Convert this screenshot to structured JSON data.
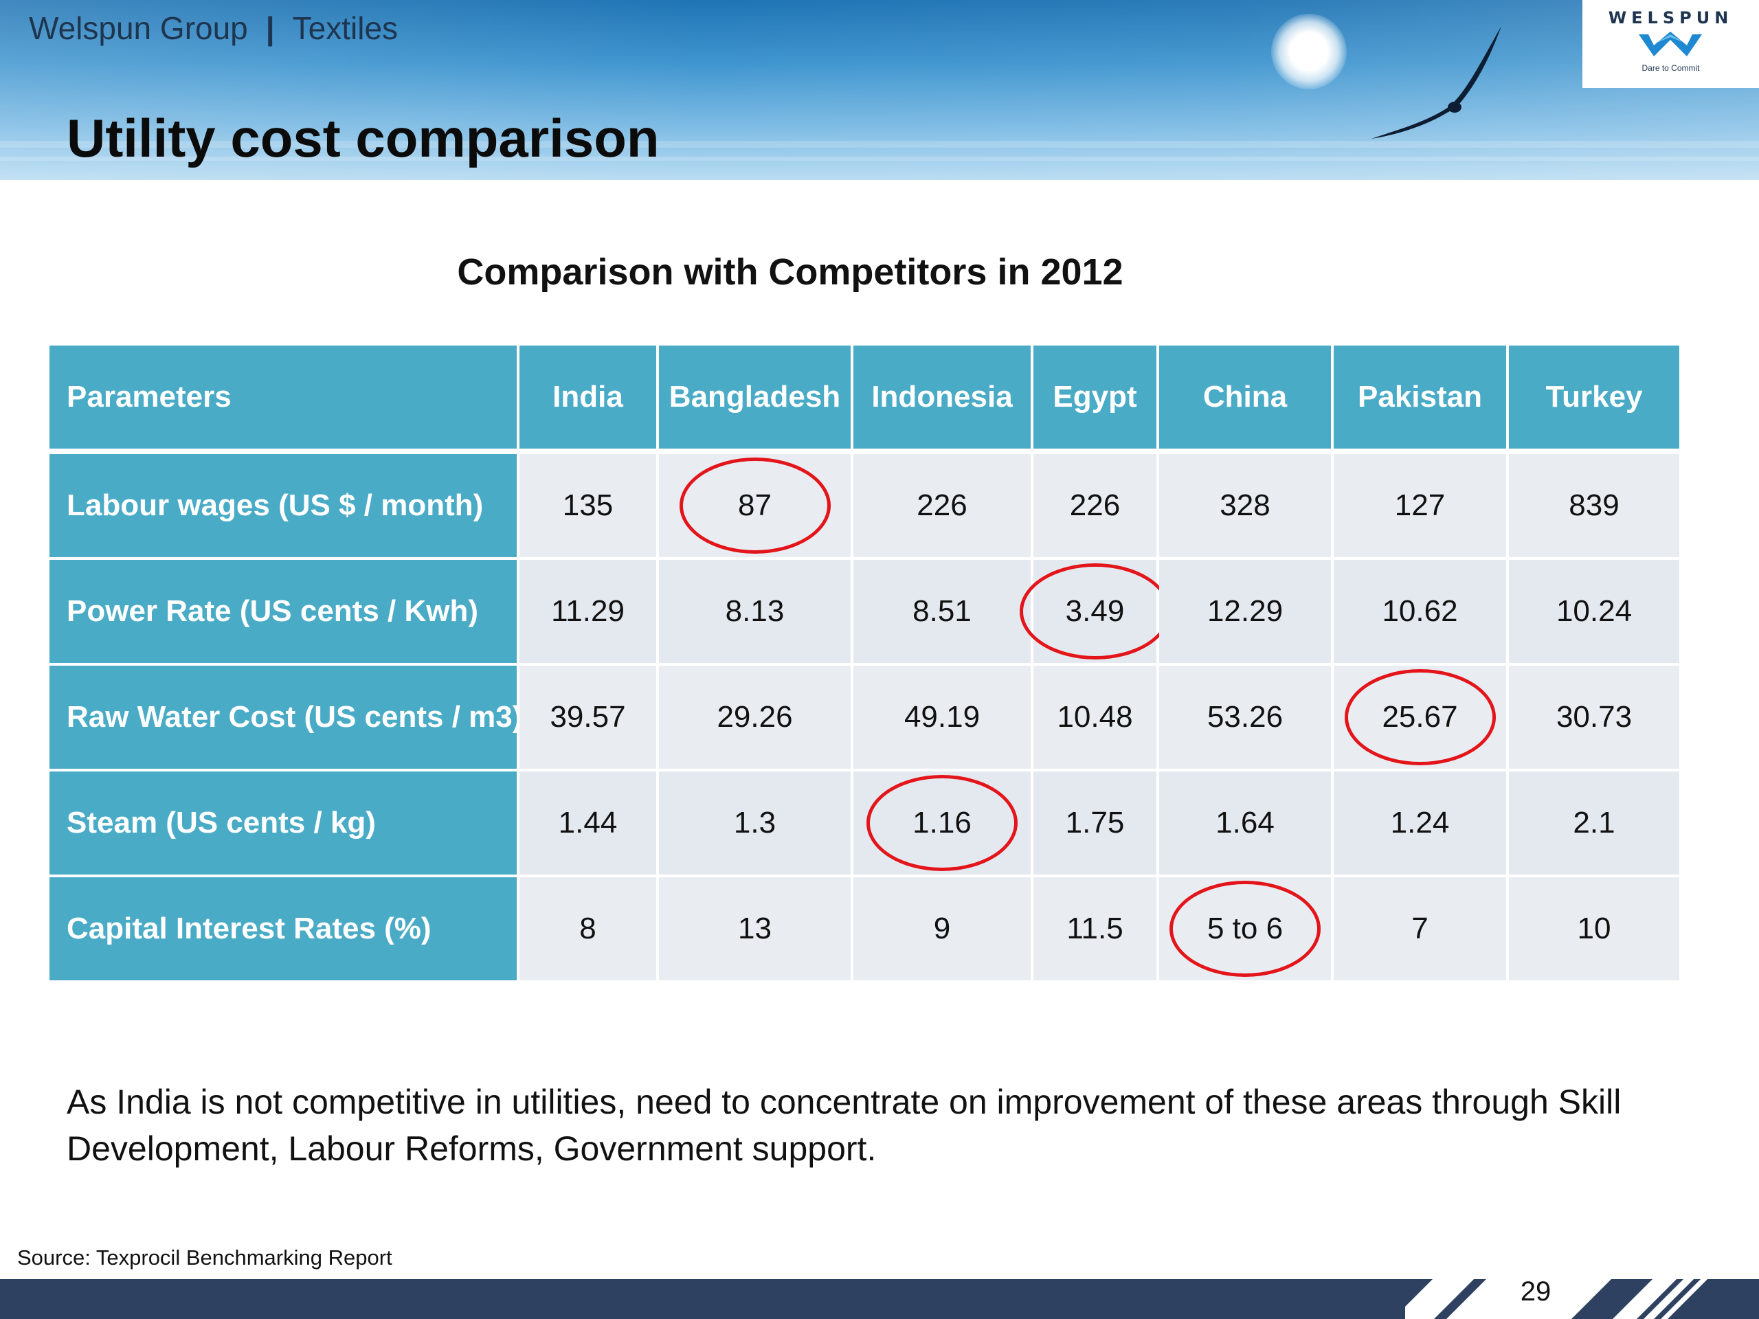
{
  "header": {
    "company": "Welspun Group",
    "separator": "|",
    "division": "Textiles",
    "title": "Utility cost comparison",
    "logo_text": "WELSPUN",
    "logo_tagline": "Dare to Commit"
  },
  "table": {
    "title": "Comparison with Competitors in 2012",
    "headers": [
      "Parameters",
      "India",
      "Bangladesh",
      "Indonesia",
      "Egypt",
      "China",
      "Pakistan",
      "Turkey"
    ],
    "rows": [
      {
        "parameter": "Labour wages (US $ / month)",
        "values": [
          "135",
          "87",
          "226",
          "226",
          "328",
          "127",
          "839"
        ],
        "circled": "Bangladesh"
      },
      {
        "parameter": "Power Rate (US cents / Kwh)",
        "values": [
          "11.29",
          "8.13",
          "8.51",
          "3.49",
          "12.29",
          "10.62",
          "10.24"
        ],
        "circled": "Egypt"
      },
      {
        "parameter": "Raw Water Cost (US cents / m3)",
        "values": [
          "39.57",
          "29.26",
          "49.19",
          "10.48",
          "53.26",
          "25.67",
          "30.73"
        ],
        "circled": "Pakistan"
      },
      {
        "parameter": "Steam (US cents / kg)",
        "values": [
          "1.44",
          "1.3",
          "1.16",
          "1.75",
          "1.64",
          "1.24",
          "2.1"
        ],
        "circled": "Indonesia"
      },
      {
        "parameter": "Capital Interest Rates (%)",
        "values": [
          "8",
          "13",
          "9",
          "11.5",
          "5 to 6",
          "7",
          "10"
        ],
        "circled": "China"
      }
    ],
    "highlight_color": "#e3151a",
    "header_color": "#4aabc7",
    "cell_color": "#e9edf2"
  },
  "conclusion": "As India is not competitive in utilities, need to concentrate on improvement of these areas through Skill Development, Labour Reforms, Government support.",
  "source": "Source: Texprocil Benchmarking Report",
  "page_number": "29",
  "colors": {
    "footer_bar": "#2e4160",
    "title_text": "#0b0b0b"
  }
}
